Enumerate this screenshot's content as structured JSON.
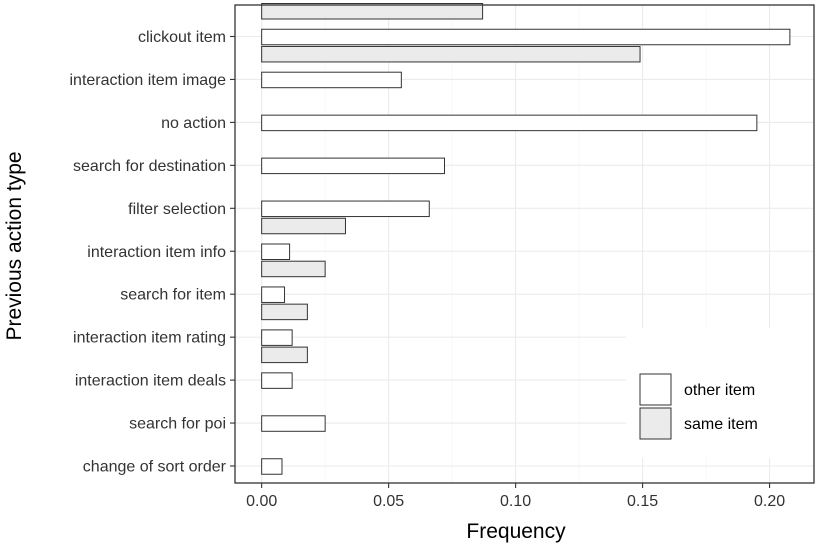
{
  "chart_data": {
    "type": "bar",
    "orientation": "horizontal",
    "title": "",
    "xlabel": "Frequency",
    "ylabel": "Previous action type",
    "categories": [
      "clickout item",
      "interaction item image",
      "no action",
      "search for destination",
      "filter selection",
      "interaction item info",
      "search for item",
      "interaction item rating",
      "interaction item deals",
      "search for poi",
      "change of sort order"
    ],
    "series": [
      {
        "name": "same item",
        "color": "#ebebeb",
        "values": [
          0.087,
          0.149,
          null,
          null,
          null,
          0.033,
          0.025,
          0.018,
          0.018,
          null,
          null
        ]
      },
      {
        "name": "other item",
        "color": "#ffffff",
        "values": [
          0.208,
          0.055,
          0.195,
          0.072,
          0.066,
          0.011,
          0.009,
          0.012,
          0.012,
          0.025,
          0.008
        ]
      }
    ],
    "xlim": [
      -0.0105,
      0.2175
    ],
    "xticks": [
      "0.00",
      "0.05",
      "0.10",
      "0.15",
      "0.20"
    ],
    "grid": true,
    "legend": {
      "position": "bottom-right",
      "entries": [
        {
          "label": "other item",
          "color": "#ffffff"
        },
        {
          "label": "same item",
          "color": "#ebebeb"
        }
      ]
    }
  }
}
